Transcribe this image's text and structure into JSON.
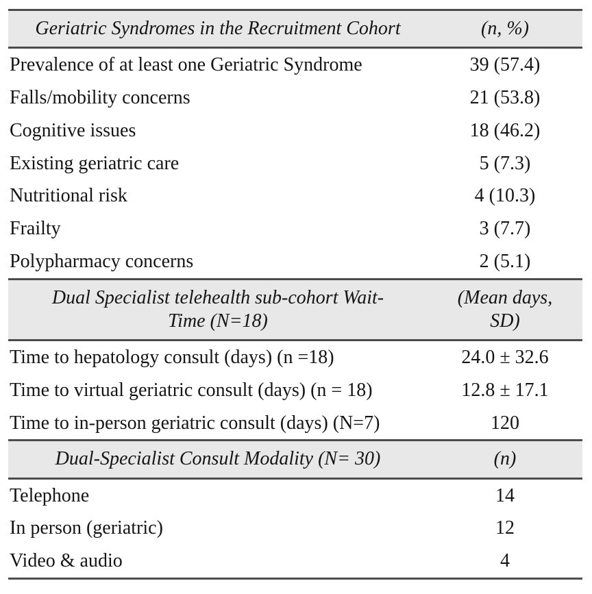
{
  "table": {
    "sections": [
      {
        "header": {
          "label": "Geriatric Syndromes in the Recruitment Cohort",
          "value": "(n, %)"
        },
        "rows": [
          {
            "label": "Prevalence of at least one Geriatric Syndrome",
            "value": "39 (57.4)"
          },
          {
            "label": "Falls/mobility concerns",
            "value": "21 (53.8)"
          },
          {
            "label": "Cognitive issues",
            "value": "18 (46.2)"
          },
          {
            "label": "Existing geriatric care",
            "value": "5 (7.3)"
          },
          {
            "label": "Nutritional risk",
            "value": "4 (10.3)"
          },
          {
            "label": "Frailty",
            "value": "3 (7.7)"
          },
          {
            "label": "Polypharmacy concerns",
            "value": "2 (5.1)"
          }
        ]
      },
      {
        "header": {
          "label": "Dual Specialist telehealth sub-cohort Wait-Time (N=18)",
          "value": "(Mean days, SD)"
        },
        "rows": [
          {
            "label": "Time to hepatology consult (days) (n =18)",
            "value": "24.0 ± 32.6"
          },
          {
            "label": "Time to virtual geriatric consult (days) (n = 18)",
            "value": "12.8 ± 17.1"
          },
          {
            "label": "Time to in-person geriatric consult (days) (N=7)",
            "value": "120"
          }
        ]
      },
      {
        "header": {
          "label": "Dual-Specialist Consult Modality (N= 30)",
          "value": "(n)"
        },
        "rows": [
          {
            "label": "Telephone",
            "value": "14"
          },
          {
            "label": "In person (geriatric)",
            "value": "12"
          },
          {
            "label": "Video & audio",
            "value": "4"
          }
        ]
      }
    ]
  },
  "colors": {
    "page_bg": "#ffffff",
    "header_bg": "#e8e8e8",
    "rule": "#4c4c4c",
    "text": "#151515"
  }
}
